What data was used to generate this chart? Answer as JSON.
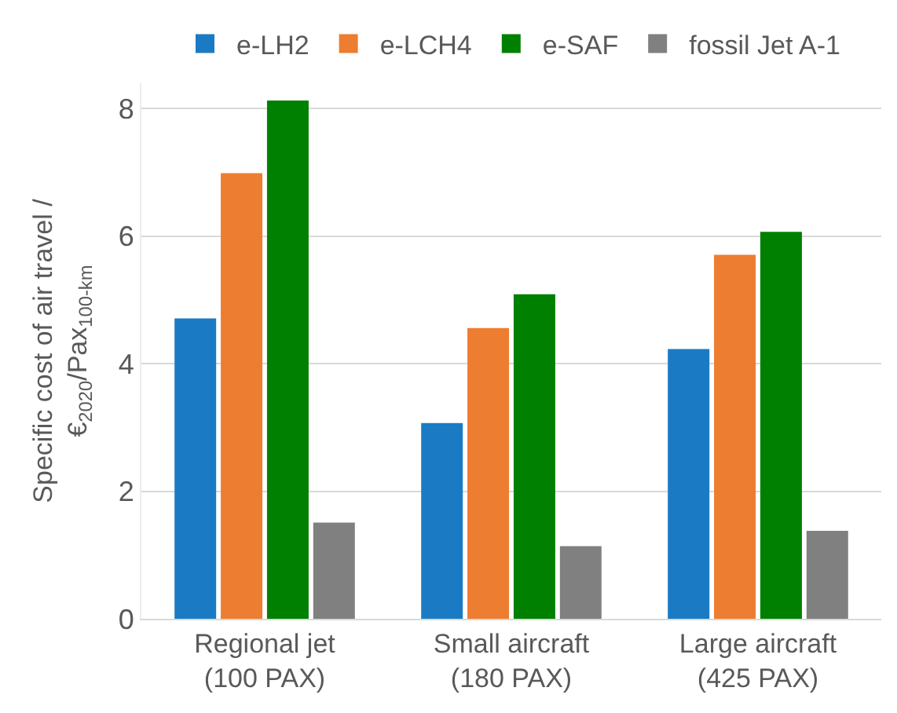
{
  "chart_data": {
    "type": "bar",
    "ylabel": "Specific cost of air travel /\n€$_{2020}$/Pax$_{100-km}$",
    "categories": [
      "Regional jet\n(100 PAX)",
      "Small aircraft\n(180 PAX)",
      "Large aircraft\n(425 PAX)"
    ],
    "series": [
      {
        "name": "e-LH2",
        "color": "#1a7bc4",
        "values": [
          4.71,
          3.07,
          4.23
        ]
      },
      {
        "name": "e-LCH4",
        "color": "#ed7d31",
        "values": [
          6.99,
          4.56,
          5.71
        ]
      },
      {
        "name": "e-SAF",
        "color": "#008000",
        "values": [
          8.13,
          5.09,
          6.07
        ]
      },
      {
        "name": "fossil Jet A-1",
        "color": "#808080",
        "values": [
          1.51,
          1.14,
          1.38
        ]
      }
    ],
    "ylim": [
      0,
      8.4
    ],
    "yticks": [
      0,
      2,
      4,
      6,
      8
    ],
    "grid": "y",
    "legend": "top"
  }
}
